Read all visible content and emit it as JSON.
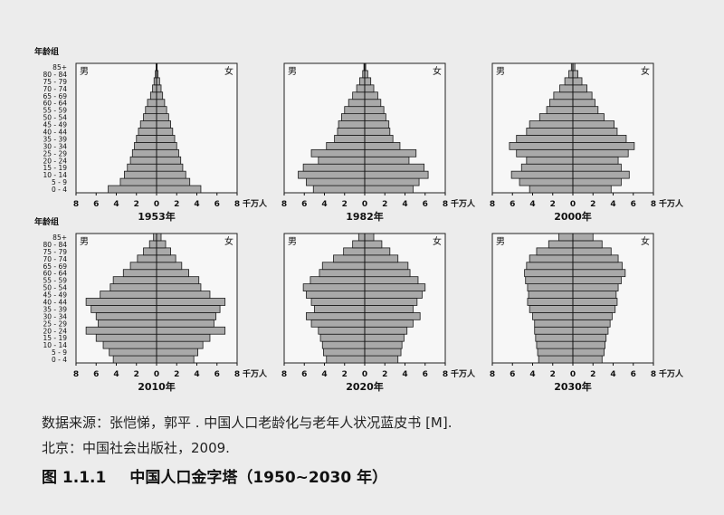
{
  "age_axis_label": "年龄组",
  "male_label": "男",
  "female_label": "女",
  "x_unit": "千万人",
  "x_ticks": [
    8,
    6,
    4,
    2,
    0,
    2,
    4,
    6,
    8
  ],
  "age_groups": [
    "0 - 4",
    "5 - 9",
    "10 - 14",
    "15 - 19",
    "20 - 24",
    "25 - 29",
    "30 - 34",
    "35 - 39",
    "40 - 44",
    "45 - 49",
    "50 - 54",
    "55 - 59",
    "60 - 64",
    "65 - 69",
    "70 - 74",
    "75 - 79",
    "80 - 84",
    "85+"
  ],
  "source": {
    "line1": "数据来源：张恺悌，郭平 . 中国人口老龄化与老年人状况蓝皮书 [M].",
    "line2": "北京：中国社会出版社，2009."
  },
  "caption": {
    "number": "图 1.1.1",
    "title": "中国人口金字塔（1950~2030 年）"
  },
  "chart_data": [
    {
      "type": "bar",
      "title": "1953年",
      "xlim": [
        -8,
        8
      ],
      "categories": [
        "0 - 4",
        "5 - 9",
        "10 - 14",
        "15 - 19",
        "20 - 24",
        "25 - 29",
        "30 - 34",
        "35 - 39",
        "40 - 44",
        "45 - 49",
        "50 - 54",
        "55 - 59",
        "60 - 64",
        "65 - 69",
        "70 - 74",
        "75 - 79",
        "80 - 84",
        "85+"
      ],
      "series": [
        {
          "name": "男",
          "values": [
            4.8,
            3.6,
            3.2,
            2.9,
            2.6,
            2.4,
            2.2,
            2.0,
            1.8,
            1.6,
            1.3,
            1.1,
            0.9,
            0.6,
            0.4,
            0.25,
            0.12,
            0.05
          ]
        },
        {
          "name": "女",
          "values": [
            4.4,
            3.3,
            2.9,
            2.6,
            2.4,
            2.2,
            2.0,
            1.8,
            1.6,
            1.4,
            1.2,
            1.0,
            0.8,
            0.6,
            0.45,
            0.3,
            0.15,
            0.06
          ]
        }
      ]
    },
    {
      "type": "bar",
      "title": "1982年",
      "xlim": [
        -8,
        8
      ],
      "categories": [
        "0 - 4",
        "5 - 9",
        "10 - 14",
        "15 - 19",
        "20 - 24",
        "25 - 29",
        "30 - 34",
        "35 - 39",
        "40 - 44",
        "45 - 49",
        "50 - 54",
        "55 - 59",
        "60 - 64",
        "65 - 69",
        "70 - 74",
        "75 - 79",
        "80 - 84",
        "85+"
      ],
      "series": [
        {
          "name": "男",
          "values": [
            5.1,
            5.8,
            6.6,
            6.1,
            4.6,
            5.3,
            3.8,
            3.0,
            2.7,
            2.6,
            2.3,
            2.0,
            1.6,
            1.2,
            0.8,
            0.5,
            0.2,
            0.08
          ]
        },
        {
          "name": "女",
          "values": [
            4.8,
            5.4,
            6.3,
            5.9,
            4.4,
            5.1,
            3.5,
            2.8,
            2.5,
            2.4,
            2.1,
            1.9,
            1.6,
            1.3,
            0.9,
            0.6,
            0.3,
            0.1
          ]
        }
      ]
    },
    {
      "type": "bar",
      "title": "2000年",
      "xlim": [
        -8,
        8
      ],
      "categories": [
        "0 - 4",
        "5 - 9",
        "10 - 14",
        "15 - 19",
        "20 - 24",
        "25 - 29",
        "30 - 34",
        "35 - 39",
        "40 - 44",
        "45 - 49",
        "50 - 54",
        "55 - 59",
        "60 - 64",
        "65 - 69",
        "70 - 74",
        "75 - 79",
        "80 - 84",
        "85+"
      ],
      "series": [
        {
          "name": "男",
          "values": [
            4.3,
            5.3,
            6.1,
            5.1,
            4.6,
            5.6,
            6.3,
            5.6,
            4.6,
            4.3,
            3.3,
            2.6,
            2.3,
            1.9,
            1.3,
            0.8,
            0.4,
            0.15
          ]
        },
        {
          "name": "女",
          "values": [
            3.8,
            4.8,
            5.6,
            4.8,
            4.5,
            5.5,
            6.1,
            5.3,
            4.4,
            4.1,
            3.1,
            2.5,
            2.2,
            1.9,
            1.4,
            0.9,
            0.5,
            0.2
          ]
        }
      ]
    },
    {
      "type": "bar",
      "title": "2010年",
      "xlim": [
        -8,
        8
      ],
      "categories": [
        "0 - 4",
        "5 - 9",
        "10 - 14",
        "15 - 19",
        "20 - 24",
        "25 - 29",
        "30 - 34",
        "35 - 39",
        "40 - 44",
        "45 - 49",
        "50 - 54",
        "55 - 59",
        "60 - 64",
        "65 - 69",
        "70 - 74",
        "75 - 79",
        "80 - 84",
        "85+"
      ],
      "series": [
        {
          "name": "男",
          "values": [
            4.3,
            4.7,
            5.3,
            6.0,
            7.0,
            5.8,
            6.0,
            6.5,
            7.0,
            5.6,
            4.6,
            4.3,
            3.3,
            2.6,
            1.9,
            1.3,
            0.7,
            0.3
          ]
        },
        {
          "name": "女",
          "values": [
            3.7,
            4.1,
            4.6,
            5.3,
            6.8,
            5.7,
            5.9,
            6.3,
            6.8,
            5.3,
            4.4,
            4.2,
            3.2,
            2.5,
            1.9,
            1.4,
            0.9,
            0.45
          ]
        }
      ]
    },
    {
      "type": "bar",
      "title": "2020年",
      "xlim": [
        -8,
        8
      ],
      "categories": [
        "0 - 4",
        "5 - 9",
        "10 - 14",
        "15 - 19",
        "20 - 24",
        "25 - 29",
        "30 - 34",
        "35 - 39",
        "40 - 44",
        "45 - 49",
        "50 - 54",
        "55 - 59",
        "60 - 64",
        "65 - 69",
        "70 - 74",
        "75 - 79",
        "80 - 84",
        "85+"
      ],
      "series": [
        {
          "name": "男",
          "values": [
            3.8,
            4.1,
            4.2,
            4.4,
            4.6,
            5.3,
            5.8,
            5.0,
            5.3,
            5.8,
            6.1,
            5.4,
            4.5,
            4.2,
            3.1,
            2.1,
            1.2,
            0.6
          ]
        },
        {
          "name": "女",
          "values": [
            3.3,
            3.6,
            3.7,
            3.9,
            4.2,
            4.8,
            5.5,
            4.8,
            5.2,
            5.7,
            6.0,
            5.3,
            4.5,
            4.3,
            3.3,
            2.5,
            1.7,
            0.9
          ]
        }
      ]
    },
    {
      "type": "bar",
      "title": "2030年",
      "xlim": [
        -8,
        8
      ],
      "categories": [
        "0 - 4",
        "5 - 9",
        "10 - 14",
        "15 - 19",
        "20 - 24",
        "25 - 29",
        "30 - 34",
        "35 - 39",
        "40 - 44",
        "45 - 49",
        "50 - 54",
        "55 - 59",
        "60 - 64",
        "65 - 69",
        "70 - 74",
        "75 - 79",
        "80 - 84",
        "85+"
      ],
      "series": [
        {
          "name": "男",
          "values": [
            3.4,
            3.5,
            3.6,
            3.7,
            3.8,
            3.8,
            4.0,
            4.3,
            4.5,
            4.4,
            4.5,
            4.7,
            4.8,
            4.6,
            4.3,
            3.6,
            2.4,
            1.4
          ]
        },
        {
          "name": "女",
          "values": [
            2.9,
            3.1,
            3.2,
            3.3,
            3.5,
            3.7,
            3.9,
            4.2,
            4.4,
            4.3,
            4.5,
            4.8,
            5.2,
            4.9,
            4.5,
            3.8,
            2.9,
            2.0
          ]
        }
      ]
    }
  ]
}
